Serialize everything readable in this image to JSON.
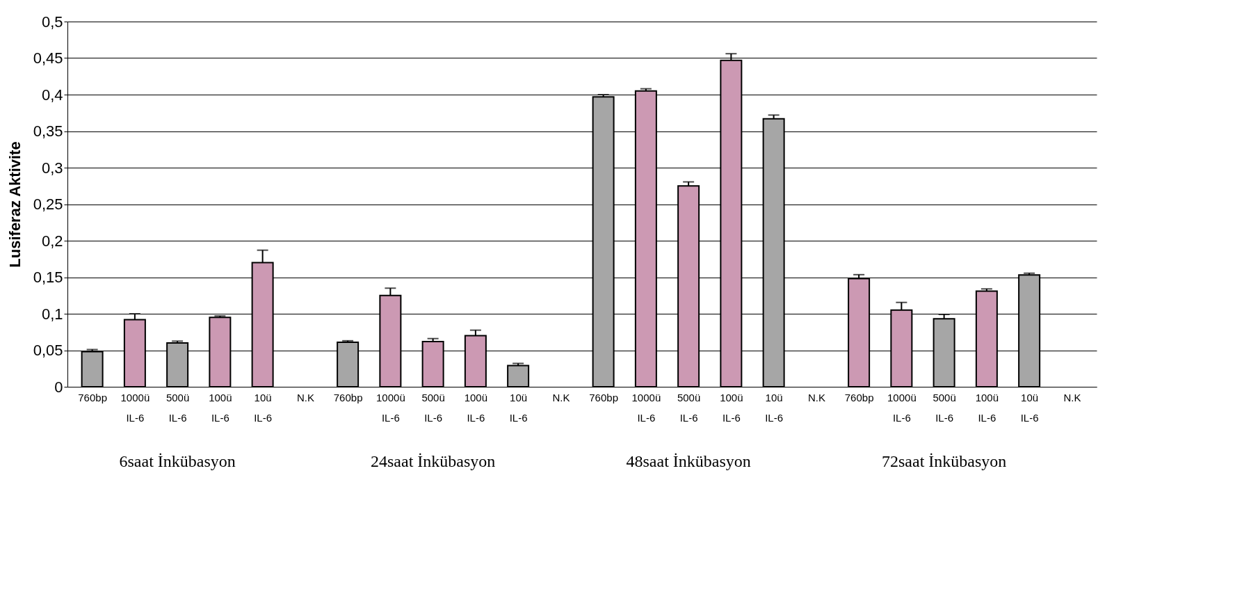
{
  "chart_data": {
    "type": "bar",
    "ylabel": "Lusiferaz Aktivite",
    "categories": [
      "760bp",
      "1000ü\nIL-6",
      "500ü\nIL-6",
      "100ü\nIL-6",
      "10ü\nIL-6",
      "N.K",
      "760bp",
      "1000ü\nIL-6",
      "500ü\nIL-6",
      "100ü\nIL-6",
      "10ü\nIL-6",
      "N.K",
      "760bp",
      "1000ü\nIL-6",
      "500ü\nIL-6",
      "100ü\nIL-6",
      "10ü\nIL-6",
      "N.K",
      "760bp",
      "1000ü\nIL-6",
      "500ü\nIL-6",
      "100ü\nIL-6",
      "10ü\nIL-6",
      "N.K"
    ],
    "values": [
      0.048,
      0.092,
      0.06,
      0.095,
      0.17,
      null,
      0.061,
      0.125,
      0.062,
      0.07,
      0.029,
      null,
      0.397,
      0.405,
      0.275,
      0.447,
      0.367,
      null,
      0.148,
      0.105,
      0.093,
      0.131,
      0.153,
      null
    ],
    "errors": [
      0.003,
      0.008,
      0.0025,
      0.002,
      0.017,
      null,
      0.002,
      0.01,
      0.004,
      0.0075,
      0.003,
      null,
      0.003,
      0.003,
      0.0055,
      0.009,
      0.005,
      null,
      0.0055,
      0.0105,
      0.006,
      0.003,
      0.0025,
      null
    ],
    "colors": [
      "#a6a6a6",
      "#cc99b3",
      "#a6a6a6",
      "#cc99b3",
      "#cc99b3",
      null,
      "#a6a6a6",
      "#cc99b3",
      "#cc99b3",
      "#cc99b3",
      "#a6a6a6",
      null,
      "#a6a6a6",
      "#cc99b3",
      "#cc99b3",
      "#cc99b3",
      "#a6a6a6",
      null,
      "#cc99b3",
      "#cc99b3",
      "#a6a6a6",
      "#cc99b3",
      "#a6a6a6",
      null
    ],
    "ylim": [
      0,
      0.5
    ],
    "yticks": [
      0,
      {
        "value": 0.05,
        "label": "0,05"
      },
      {
        "value": 0.1,
        "label": "0,1"
      },
      {
        "value": 0.15,
        "label": "0,15"
      },
      {
        "value": 0.2,
        "label": "0,2"
      },
      {
        "value": 0.25,
        "label": "0,25"
      },
      {
        "value": 0.3,
        "label": "0,3"
      },
      {
        "value": 0.35,
        "label": "0,35"
      },
      {
        "value": 0.4,
        "label": "0,4"
      },
      {
        "value": 0.45,
        "label": "0,45"
      },
      {
        "value": 0.5,
        "label": "0,5"
      }
    ],
    "grid": "y",
    "annotations": [
      "6saat İnkübasyon",
      "24saat İnkübasyon",
      "48saat İnkübasyon",
      "72saat İnkübasyon"
    ]
  }
}
